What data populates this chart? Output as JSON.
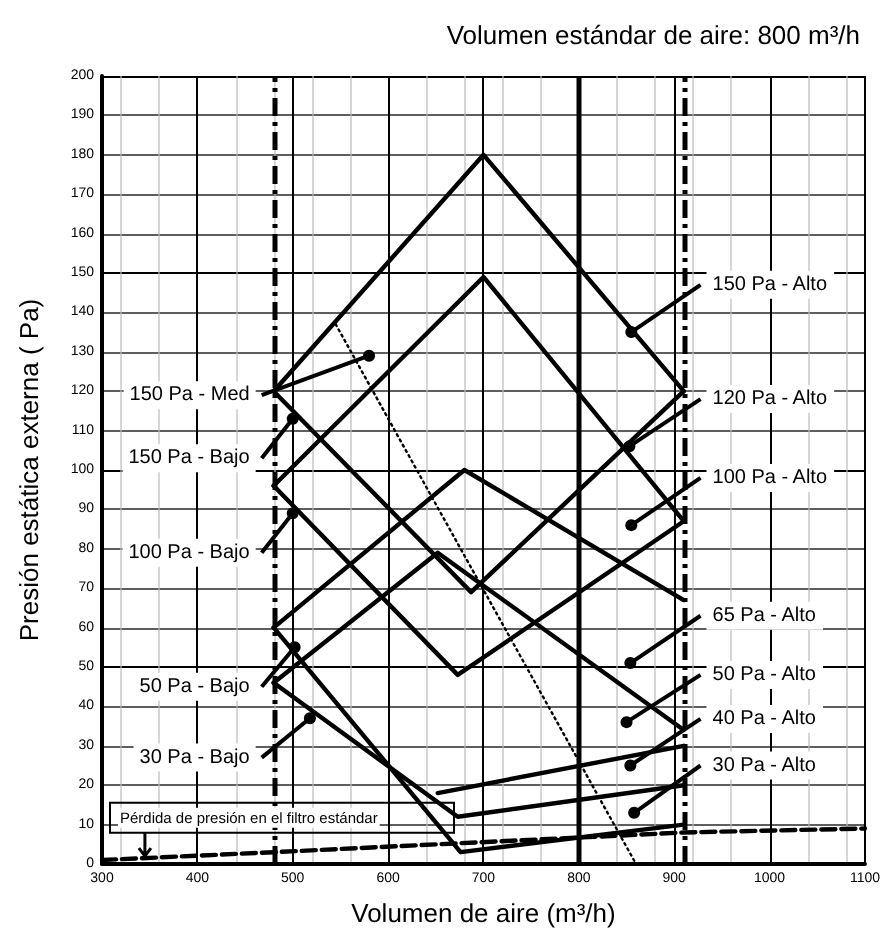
{
  "chart_data": {
    "type": "line",
    "title": "Volumen estándar de aire: 800 m³/h",
    "xlabel": "Volumen de aire (m³/h)",
    "ylabel": "Presión estática externa ( Pa)",
    "xlim": [
      300,
      1100
    ],
    "xticks": [
      300,
      400,
      500,
      600,
      700,
      800,
      900,
      1000,
      1100
    ],
    "ylim": [
      0,
      200
    ],
    "yticks": [
      0,
      10,
      20,
      30,
      40,
      50,
      60,
      70,
      80,
      90,
      100,
      110,
      120,
      130,
      140,
      150,
      160,
      170,
      180,
      190,
      200
    ],
    "grid": true,
    "marker": "none",
    "series": [
      {
        "color": "#000000",
        "x": [
          480,
          700,
          910
        ],
        "values": [
          120,
          180,
          120
        ]
      },
      {
        "color": "#000000",
        "x": [
          480,
          687,
          910
        ],
        "values": [
          120,
          69,
          120
        ]
      },
      {
        "color": "#000000",
        "x": [
          480,
          700,
          910
        ],
        "values": [
          96,
          149,
          87
        ]
      },
      {
        "color": "#000000",
        "x": [
          480,
          673,
          910
        ],
        "values": [
          96,
          48,
          87
        ]
      },
      {
        "color": "#000000",
        "x": [
          480,
          680,
          910
        ],
        "values": [
          60,
          100,
          67
        ]
      },
      {
        "color": "#000000",
        "x": [
          480,
          676,
          910
        ],
        "values": [
          60,
          3,
          10
        ]
      },
      {
        "color": "#000000",
        "x": [
          480,
          652,
          910
        ],
        "values": [
          46,
          79,
          34
        ]
      },
      {
        "color": "#000000",
        "x": [
          480,
          673,
          910
        ],
        "values": [
          46,
          12,
          20
        ]
      },
      {
        "color": "#000000",
        "x": [
          652,
          910
        ],
        "values": [
          18,
          30
        ]
      },
      {
        "color": "#000000",
        "x": [
          545,
          860
        ],
        "values": [
          137,
          0
        ],
        "line_style": "dotted"
      },
      {
        "color": "#000000",
        "x": [
          300,
          480,
          910,
          1100
        ],
        "values": [
          1,
          3,
          8,
          9
        ],
        "line_style": "dashed"
      }
    ],
    "ref_lines": [
      {
        "axis": "x",
        "value": 480,
        "line_style": "dashed",
        "color": "#000000"
      },
      {
        "axis": "x",
        "value": 910,
        "line_style": "dashed",
        "color": "#000000"
      },
      {
        "axis": "x",
        "value": 800,
        "line_style": "solid",
        "color": "#000000"
      }
    ],
    "annotations": [
      {
        "text": "150 Pa - Alto",
        "x": 855,
        "y": 135
      },
      {
        "text": "120 Pa - Alto",
        "x": 853,
        "y": 106
      },
      {
        "text": "100 Pa - Alto",
        "x": 855,
        "y": 86
      },
      {
        "text": "65 Pa - Alto",
        "x": 854,
        "y": 51
      },
      {
        "text": "50 Pa - Alto",
        "x": 850,
        "y": 36
      },
      {
        "text": "40 Pa - Alto",
        "x": 854,
        "y": 25
      },
      {
        "text": "30 Pa - Alto",
        "x": 858,
        "y": 13
      },
      {
        "text": "150 Pa - Med",
        "x": 580,
        "y": 129
      },
      {
        "text": "150 Pa - Bajo",
        "x": 500,
        "y": 113
      },
      {
        "text": "100 Pa - Bajo",
        "x": 500,
        "y": 89
      },
      {
        "text": "50 Pa - Bajo",
        "x": 502,
        "y": 55
      },
      {
        "text": "30 Pa - Bajo",
        "x": 518,
        "y": 37
      },
      {
        "text": "Pérdida de presión en el filtro estándar",
        "x": 345,
        "y": 1
      }
    ]
  }
}
